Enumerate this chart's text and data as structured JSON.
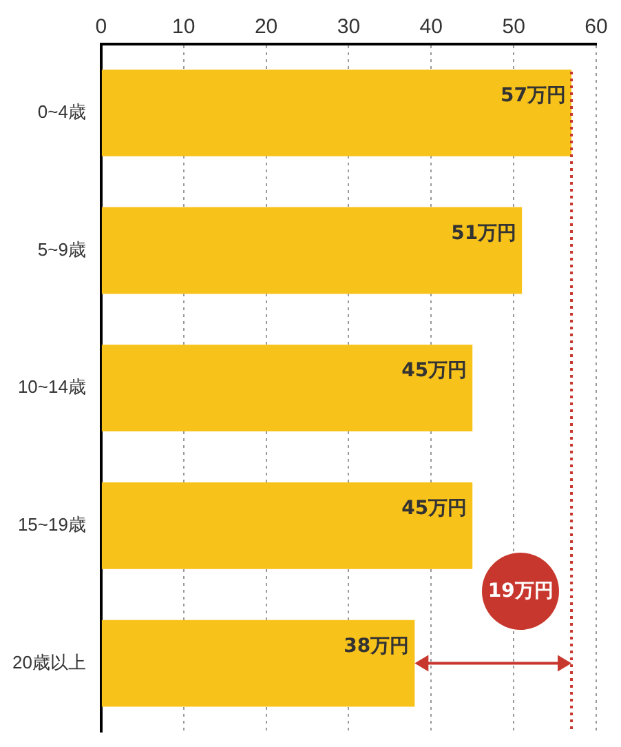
{
  "chart_data": {
    "type": "bar",
    "orientation": "horizontal",
    "categories": [
      "0~4歳",
      "5~9歳",
      "10~14歳",
      "15~19歳",
      "20歳以上"
    ],
    "values": [
      57,
      51,
      45,
      45,
      38
    ],
    "color": "#f7c21a",
    "value_labels": [
      "57万円",
      "51万円",
      "45万円",
      "45万円",
      "38万円"
    ],
    "xlim": [
      0,
      60
    ],
    "xticks": [
      0,
      10,
      20,
      30,
      40,
      50,
      60
    ],
    "grid": "x",
    "legend": false,
    "ref_lines": [
      {
        "axis": "x",
        "value": 57,
        "color": "#c8372d",
        "line_style": "dotted"
      }
    ],
    "annotations": [
      "19万円"
    ]
  }
}
